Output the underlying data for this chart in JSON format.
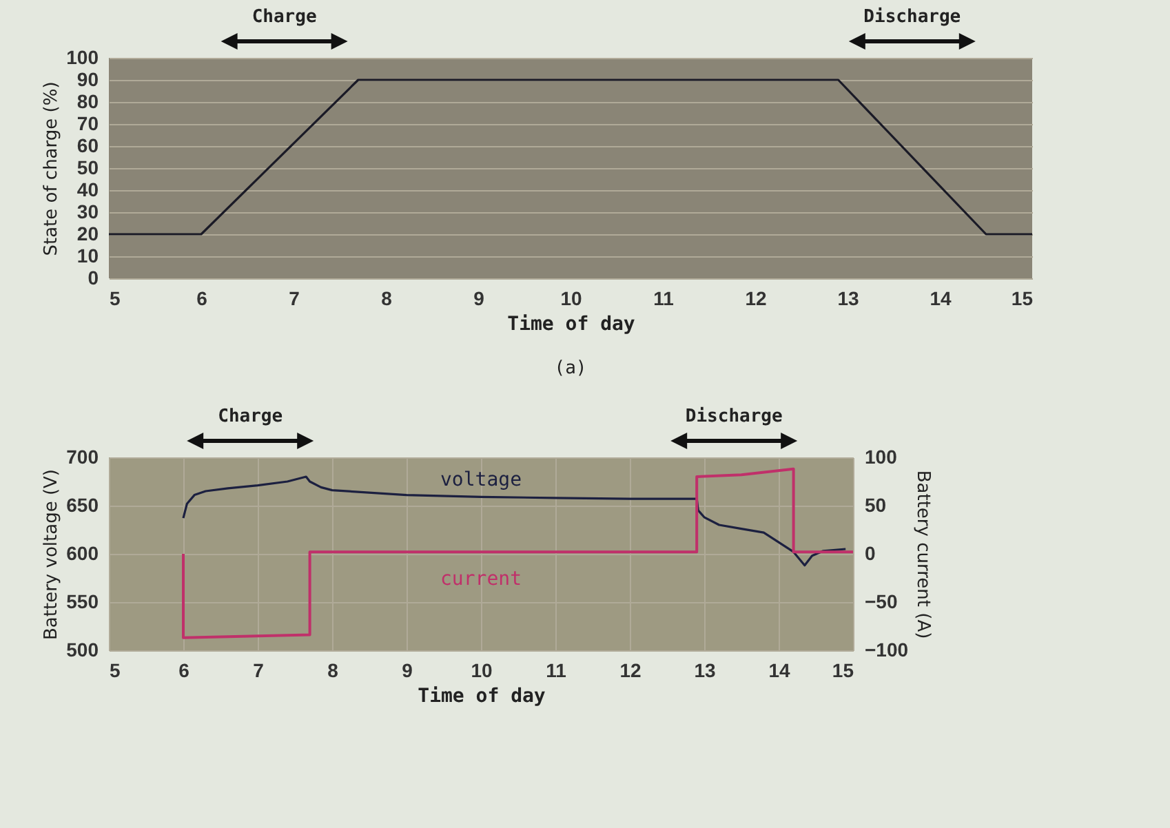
{
  "chart_data": [
    {
      "type": "line",
      "xlabel": "Time of day",
      "ylabel": "State of charge (%)",
      "xlim": [
        5,
        15
      ],
      "ylim": [
        0,
        100
      ],
      "xticks": [
        5,
        6,
        7,
        8,
        9,
        10,
        11,
        12,
        13,
        14,
        15
      ],
      "yticks": [
        0,
        10,
        20,
        30,
        40,
        50,
        60,
        70,
        80,
        90,
        100
      ],
      "grid": "y",
      "legend": false,
      "series": [
        {
          "color": "#1a1a26",
          "x": [
            5,
            6,
            7.7,
            12.9,
            14.5,
            15
          ],
          "values": [
            20,
            20,
            90,
            90,
            20,
            20
          ]
        }
      ],
      "annotations": [
        "Charge",
        "Discharge",
        "(a)"
      ]
    },
    {
      "type": "line",
      "xlabel": "Time of day",
      "ylabel": "Battery voltage (V)",
      "y2label": "Battery current (A)",
      "xlim": [
        5,
        15
      ],
      "ylim": [
        500,
        700
      ],
      "y2lim": [
        -100,
        100
      ],
      "xticks": [
        5,
        6,
        7,
        8,
        9,
        10,
        11,
        12,
        13,
        14,
        15
      ],
      "yticks": [
        500,
        550,
        600,
        650,
        700
      ],
      "y2ticks": [
        -100,
        -50,
        0,
        50,
        100
      ],
      "grid": true,
      "legend": false,
      "series": [
        {
          "name": "voltage",
          "color": "#1c2040",
          "x": [
            6,
            6.05,
            6.15,
            6.3,
            6.6,
            7,
            7.4,
            7.65,
            7.7,
            7.85,
            8,
            9,
            10,
            11,
            12,
            12.9,
            12.92,
            13.0,
            13.2,
            13.5,
            13.8,
            14.0,
            14.2,
            14.35,
            14.45,
            14.6,
            14.9
          ],
          "values": [
            637,
            652,
            661,
            665,
            668,
            671,
            675,
            680,
            675,
            669,
            666,
            661,
            659,
            658,
            657,
            657,
            645,
            638,
            630,
            626,
            622,
            612,
            602,
            588,
            598,
            603,
            605
          ]
        },
        {
          "name": "current",
          "color": "#c0306a",
          "axis": "y2",
          "x": [
            6,
            6,
            7.7,
            7.7,
            12.9,
            12.9,
            13.5,
            14.2,
            14.2,
            15
          ],
          "values": [
            0,
            -87,
            -84,
            2,
            2,
            80,
            82,
            88,
            2,
            2
          ]
        }
      ],
      "annotations": [
        "Charge",
        "Discharge"
      ]
    }
  ]
}
